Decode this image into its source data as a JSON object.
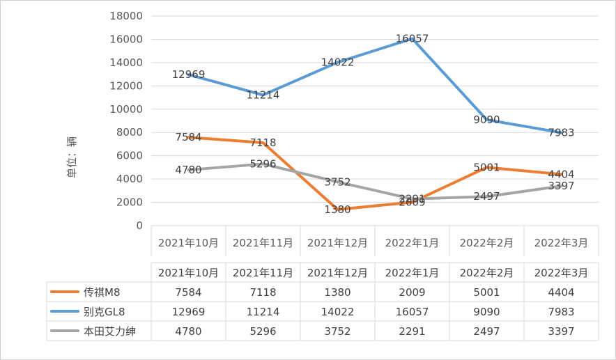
{
  "chart_data": {
    "type": "line",
    "categories": [
      "2021年10月",
      "2021年11月",
      "2021年12月",
      "2022年1月",
      "2022年2月",
      "2022年3月"
    ],
    "series": [
      {
        "name": "传祺M8",
        "color": "#ed7d31",
        "values": [
          7584,
          7118,
          1380,
          2009,
          5001,
          4404
        ]
      },
      {
        "name": "别克GL8",
        "color": "#5b9bd5",
        "values": [
          12969,
          11214,
          14022,
          16057,
          9090,
          7983
        ]
      },
      {
        "name": "本田艾力绅",
        "color": "#a5a5a5",
        "values": [
          4780,
          5296,
          3752,
          2291,
          2497,
          3397
        ]
      }
    ],
    "ylabel": "单位：辆",
    "ylim": [
      0,
      18000
    ],
    "yticks": [
      0,
      2000,
      4000,
      6000,
      8000,
      10000,
      12000,
      14000,
      16000,
      18000
    ],
    "grid": true,
    "data_labels": true,
    "data_table": true
  }
}
